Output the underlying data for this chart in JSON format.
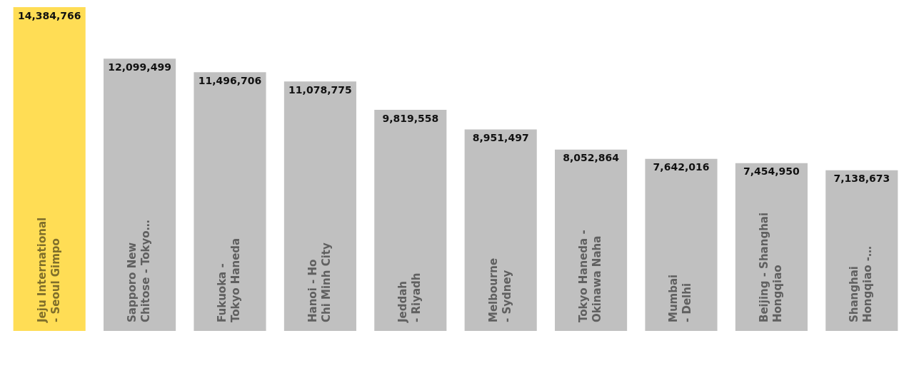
{
  "chart_data": {
    "type": "bar",
    "categories": [
      "Jeju International - Seoul Gimpo",
      "Sapporo New Chitose - Tokyo…",
      "Fukuoka - Tokyo Haneda",
      "Hanoi - Ho Chi Minh City",
      "Jeddah - Riyadh",
      "Melbourne - Sydney",
      "Tokyo Haneda - Okinawa Naha",
      "Mumbai - Delhi",
      "Beijing - Shanghai Hongqiao",
      "Shanghai Hongqiao -…"
    ],
    "values": [
      14384766,
      12099499,
      11496706,
      11078775,
      9819558,
      8951497,
      8052864,
      7642016,
      7454950,
      7138673
    ],
    "colors": [
      "#ffdd55",
      "#c0c0c0",
      "#c0c0c0",
      "#c0c0c0",
      "#c0c0c0",
      "#c0c0c0",
      "#c0c0c0",
      "#c0c0c0",
      "#c0c0c0",
      "#c0c0c0"
    ],
    "value_labels": [
      "14,384,766",
      "12,099,499",
      "11,496,706",
      "11,078,775",
      "9,819,558",
      "8,951,497",
      "8,052,864",
      "7,642,016",
      "7,454,950",
      "7,138,673"
    ]
  }
}
